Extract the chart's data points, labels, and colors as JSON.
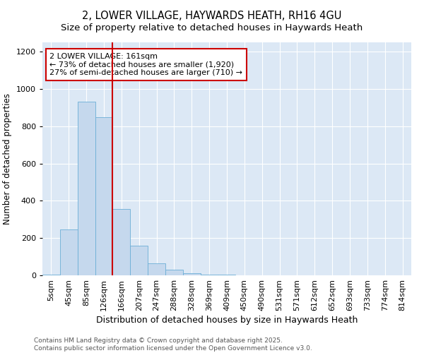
{
  "title": "2, LOWER VILLAGE, HAYWARDS HEATH, RH16 4GU",
  "subtitle": "Size of property relative to detached houses in Haywards Heath",
  "xlabel": "Distribution of detached houses by size in Haywards Heath",
  "ylabel": "Number of detached properties",
  "categories": [
    "5sqm",
    "45sqm",
    "85sqm",
    "126sqm",
    "166sqm",
    "207sqm",
    "247sqm",
    "288sqm",
    "328sqm",
    "369sqm",
    "409sqm",
    "450sqm",
    "490sqm",
    "531sqm",
    "571sqm",
    "612sqm",
    "652sqm",
    "693sqm",
    "733sqm",
    "774sqm",
    "814sqm"
  ],
  "values": [
    5,
    248,
    930,
    848,
    355,
    160,
    65,
    30,
    10,
    5,
    2,
    0,
    0,
    0,
    0,
    0,
    0,
    0,
    0,
    0,
    0
  ],
  "bar_color": "#c5d8ed",
  "bar_edge_color": "#6baed6",
  "plot_bg_color": "#dce8f5",
  "fig_bg_color": "#ffffff",
  "grid_color": "#ffffff",
  "vline_color": "#cc0000",
  "vline_x_index": 4,
  "annotation_text": "2 LOWER VILLAGE: 161sqm\n← 73% of detached houses are smaller (1,920)\n27% of semi-detached houses are larger (710) →",
  "annotation_box_facecolor": "#ffffff",
  "annotation_box_edgecolor": "#cc0000",
  "footer": "Contains HM Land Registry data © Crown copyright and database right 2025.\nContains public sector information licensed under the Open Government Licence v3.0.",
  "ylim": [
    0,
    1250
  ],
  "yticks": [
    0,
    200,
    400,
    600,
    800,
    1000,
    1200
  ],
  "title_fontsize": 10.5,
  "subtitle_fontsize": 9.5,
  "xlabel_fontsize": 9,
  "ylabel_fontsize": 8.5,
  "tick_fontsize": 8,
  "annotation_fontsize": 8,
  "footer_fontsize": 6.5
}
